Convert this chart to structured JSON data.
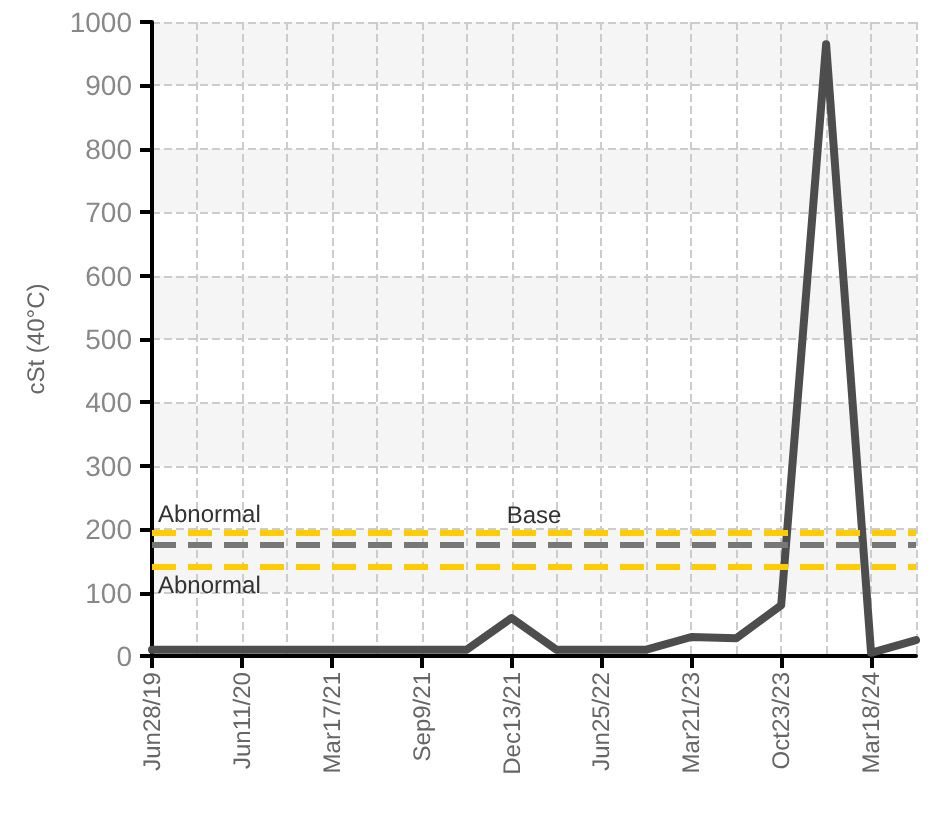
{
  "chart_data": {
    "type": "line",
    "ylabel": "cSt (40°C)",
    "categories": [
      "Jun28/19",
      null,
      "Jun11/20",
      null,
      "Mar17/21",
      null,
      "Sep9/21",
      null,
      "Dec13/21",
      null,
      "Jun25/22",
      null,
      "Mar21/23",
      null,
      "Oct23/23",
      null,
      "Mar18/24",
      null
    ],
    "series": [
      {
        "color": "#4d4d4d",
        "values": [
          10,
          10,
          10,
          10,
          10,
          10,
          10,
          10,
          60,
          10,
          10,
          10,
          30,
          28,
          80,
          965,
          5,
          25
        ]
      }
    ],
    "ylim": [
      0,
      1000
    ],
    "yticks": [
      0,
      100,
      200,
      300,
      400,
      500,
      600,
      700,
      800,
      900,
      1000
    ],
    "ref_lines": [
      {
        "axis": "y",
        "value": 195,
        "label": "Abnormal",
        "color": "#ffcc00",
        "line_style": "dashed"
      },
      {
        "axis": "y",
        "value": 175,
        "label": "Base",
        "color": "#777777",
        "line_style": "dashed"
      },
      {
        "axis": "y",
        "value": 140,
        "label": "Abnormal",
        "color": "#ffcc00",
        "line_style": "dashed"
      }
    ],
    "grid": true,
    "marker": "none",
    "line_style": "solid"
  }
}
